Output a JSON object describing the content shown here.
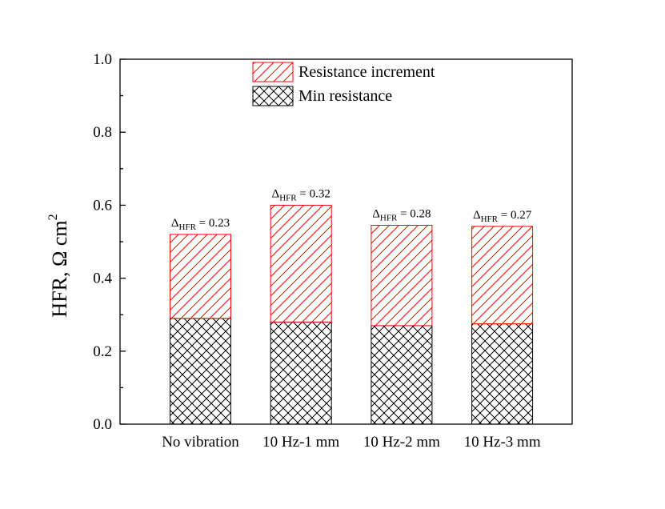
{
  "chart_data": {
    "type": "bar",
    "stacked": true,
    "title": "",
    "xlabel": "",
    "ylabel": {
      "main": "HFR, Ω cm",
      "superscript": "2"
    },
    "ylim": [
      0,
      1.0
    ],
    "yticks": [
      0.0,
      0.2,
      0.4,
      0.6,
      0.8,
      1.0
    ],
    "ytick_labels": [
      "0.0",
      "0.2",
      "0.4",
      "0.6",
      "0.8",
      "1.0"
    ],
    "categories": [
      "No vibration",
      "10 Hz-1 mm",
      "10 Hz-2 mm",
      "10 Hz-3 mm"
    ],
    "series": [
      {
        "name": "Min resistance",
        "values": [
          0.29,
          0.28,
          0.27,
          0.275
        ],
        "color": "#000000",
        "pattern": "crosshatch"
      },
      {
        "name": "Resistance increment",
        "values": [
          0.23,
          0.32,
          0.275,
          0.267
        ],
        "color": "#ff0000",
        "pattern": "diagonal"
      }
    ],
    "annotations": [
      {
        "symbol": "Δ",
        "subscript": "HFR",
        "text": " = 0.23"
      },
      {
        "symbol": "Δ",
        "subscript": "HFR",
        "text": " = 0.32"
      },
      {
        "symbol": "Δ",
        "subscript": "HFR",
        "text": " = 0.28"
      },
      {
        "symbol": "Δ",
        "subscript": "HFR",
        "text": " = 0.27"
      }
    ],
    "legend": {
      "position": "top-center",
      "entries": [
        "Resistance increment",
        "Min resistance"
      ]
    },
    "grid": false
  }
}
